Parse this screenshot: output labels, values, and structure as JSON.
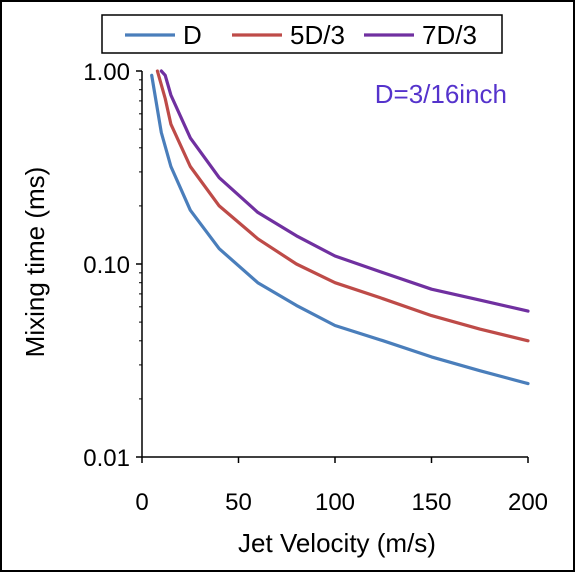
{
  "chart_data": {
    "type": "line",
    "xlabel": "Jet Velocity (m/s)",
    "ylabel": "Mixing time (ms)",
    "annotation": "D=3/16inch",
    "annotation_color": "#5533cc",
    "xlim": [
      0,
      200
    ],
    "ylim": [
      0.01,
      1.0
    ],
    "y_scale": "log",
    "x_ticks": [
      {
        "value": 0,
        "label": "0"
      },
      {
        "value": 50,
        "label": "50"
      },
      {
        "value": 100,
        "label": "100"
      },
      {
        "value": 150,
        "label": "150"
      },
      {
        "value": 200,
        "label": "200"
      }
    ],
    "y_ticks": [
      {
        "value": 0.01,
        "label": "0.01"
      },
      {
        "value": 0.1,
        "label": "0.10"
      },
      {
        "value": 1.0,
        "label": "1.00"
      }
    ],
    "grid": false,
    "legend_position": "top",
    "series": [
      {
        "name": "D",
        "color": "#4a7ebb",
        "x": [
          5,
          10,
          15,
          25,
          40,
          60,
          80,
          100,
          125,
          150,
          175,
          200
        ],
        "y": [
          0.95,
          0.48,
          0.32,
          0.19,
          0.12,
          0.08,
          0.061,
          0.048,
          0.04,
          0.033,
          0.028,
          0.024
        ]
      },
      {
        "name": "5D/3",
        "color": "#be4b48",
        "x": [
          8,
          12,
          15,
          25,
          40,
          60,
          80,
          100,
          125,
          150,
          175,
          200
        ],
        "y": [
          1.0,
          0.72,
          0.53,
          0.32,
          0.2,
          0.135,
          0.1,
          0.08,
          0.066,
          0.054,
          0.046,
          0.04
        ]
      },
      {
        "name": "7D/3",
        "color": "#7030a0",
        "x": [
          10,
          12,
          15,
          25,
          40,
          60,
          80,
          100,
          125,
          150,
          175,
          200
        ],
        "y": [
          1.0,
          0.95,
          0.75,
          0.45,
          0.28,
          0.185,
          0.14,
          0.11,
          0.09,
          0.074,
          0.065,
          0.057
        ]
      }
    ]
  }
}
